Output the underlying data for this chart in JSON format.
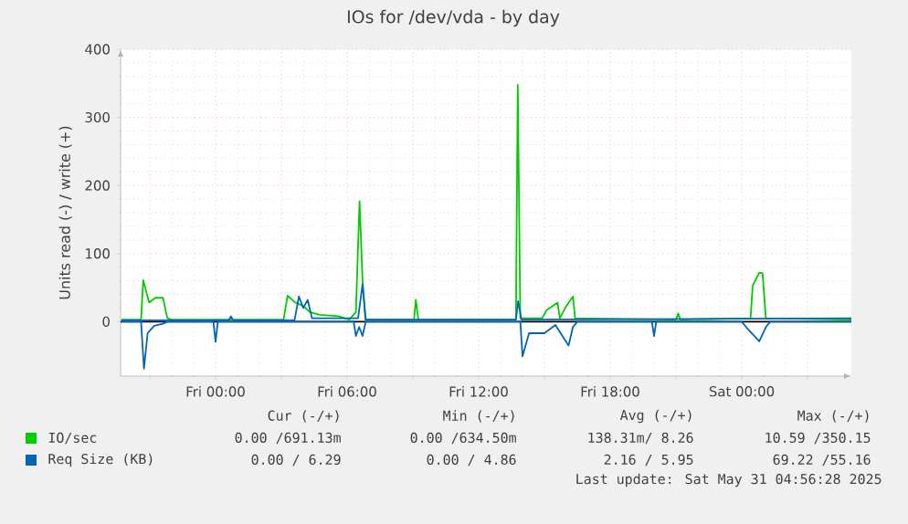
{
  "chart_data": {
    "type": "line",
    "title": "IOs for /dev/vda - by day",
    "ylabel": "Units read (-) / write (+)",
    "xlim": [
      "2025-05-29T19:40",
      "2025-05-31T05:00"
    ],
    "ylim": [
      -80,
      400
    ],
    "xticks": [
      {
        "value": "2025-05-29T21:00",
        "label": null
      },
      {
        "value": "2025-05-30T00:00",
        "label": "Fri 00:00"
      },
      {
        "value": "2025-05-30T03:00",
        "label": null
      },
      {
        "value": "2025-05-30T06:00",
        "label": "Fri 06:00"
      },
      {
        "value": "2025-05-30T09:00",
        "label": null
      },
      {
        "value": "2025-05-30T12:00",
        "label": "Fri 12:00"
      },
      {
        "value": "2025-05-30T15:00",
        "label": null
      },
      {
        "value": "2025-05-30T18:00",
        "label": "Fri 18:00"
      },
      {
        "value": "2025-05-30T21:00",
        "label": null
      },
      {
        "value": "2025-05-31T00:00",
        "label": "Sat 00:00"
      },
      {
        "value": "2025-05-31T03:00",
        "label": null
      }
    ],
    "yticks": [
      0,
      100,
      200,
      300,
      400
    ],
    "grid": true,
    "legend": "bottom",
    "ref_lines": [
      {
        "axis": "y",
        "value": 0,
        "color": "#000000"
      }
    ],
    "series": [
      {
        "name": "IO/sec",
        "color": "#00cc00",
        "x": [
          "2025-05-29T19:42",
          "2025-05-29T20:36",
          "2025-05-29T20:42",
          "2025-05-29T20:58",
          "2025-05-29T21:15",
          "2025-05-29T21:36",
          "2025-05-29T21:48",
          "2025-05-29T22:00",
          "2025-05-30T03:06",
          "2025-05-30T03:17",
          "2025-05-30T03:38",
          "2025-05-30T04:00",
          "2025-05-30T04:18",
          "2025-05-30T04:45",
          "2025-05-30T05:36",
          "2025-05-30T06:06",
          "2025-05-30T06:24",
          "2025-05-30T06:34",
          "2025-05-30T06:42",
          "2025-05-30T06:50",
          "2025-05-30T09:03",
          "2025-05-30T09:08",
          "2025-05-30T09:15",
          "2025-05-30T13:42",
          "2025-05-30T13:47",
          "2025-05-30T13:54",
          "2025-05-30T14:54",
          "2025-05-30T15:06",
          "2025-05-30T15:36",
          "2025-05-30T15:42",
          "2025-05-30T16:00",
          "2025-05-30T16:18",
          "2025-05-30T16:24",
          "2025-05-30T21:00",
          "2025-05-30T21:06",
          "2025-05-30T21:12",
          "2025-05-31T00:24",
          "2025-05-31T00:30",
          "2025-05-31T00:48",
          "2025-05-31T00:57",
          "2025-05-31T01:06",
          "2025-05-31T05:00"
        ],
        "values": [
          3,
          3,
          61,
          28,
          35,
          35,
          5,
          3,
          3,
          38,
          28,
          23,
          14,
          10,
          8,
          3,
          14,
          177,
          63,
          3,
          3,
          32,
          3,
          3,
          348,
          5,
          5,
          17,
          28,
          5,
          23,
          37,
          5,
          3,
          12,
          3,
          5,
          53,
          72,
          71,
          5,
          3
        ]
      },
      {
        "color": "#0066b3",
        "x": [
          "2025-05-29T19:42",
          "2025-05-29T20:36",
          "2025-05-29T20:44",
          "2025-05-29T20:54",
          "2025-05-29T21:12",
          "2025-05-29T21:36",
          "2025-05-29T21:48",
          "2025-05-29T23:54",
          "2025-05-30T00:00",
          "2025-05-30T00:06",
          "2025-05-30T06:18",
          "2025-05-30T06:24",
          "2025-05-30T06:33",
          "2025-05-30T06:42",
          "2025-05-30T06:51",
          "2025-05-30T13:54",
          "2025-05-30T14:00",
          "2025-05-30T14:18",
          "2025-05-30T15:00",
          "2025-05-30T15:30",
          "2025-05-30T16:06",
          "2025-05-30T16:18",
          "2025-05-30T16:30",
          "2025-05-30T19:54",
          "2025-05-30T20:00",
          "2025-05-30T20:06",
          "2025-05-31T00:00",
          "2025-05-31T00:12",
          "2025-05-31T00:48",
          "2025-05-31T01:06",
          "2025-05-31T01:18",
          "2025-05-31T05:00"
        ],
        "values": [
          0,
          0,
          -69,
          -17,
          -6,
          -3,
          0,
          0,
          -30,
          0,
          0,
          -21,
          -8,
          -21,
          0,
          0,
          -51,
          -17,
          -17,
          -5,
          -35,
          -8,
          0,
          0,
          -21,
          0,
          0,
          -8,
          -29,
          -8,
          0,
          0
        ]
      },
      {
        "name": "Req Size (KB)",
        "color": "#0066b3",
        "x": [
          "2025-05-29T19:42",
          "2025-05-30T00:36",
          "2025-05-30T00:42",
          "2025-05-30T00:48",
          "2025-05-30T03:36",
          "2025-05-30T03:48",
          "2025-05-30T04:00",
          "2025-05-30T04:12",
          "2025-05-30T04:24",
          "2025-05-30T06:30",
          "2025-05-30T06:42",
          "2025-05-30T06:51",
          "2025-05-30T13:42",
          "2025-05-30T13:48",
          "2025-05-30T13:57",
          "2025-05-31T05:00"
        ],
        "values": [
          2,
          2,
          8,
          2,
          2,
          37,
          20,
          32,
          5,
          5,
          55,
          3,
          3,
          30,
          3,
          5
        ]
      }
    ],
    "annotations": [
      "Cur (-/+)",
      "Min (-/+)",
      "Avg (-/+)",
      "Max (-/+)",
      "0.00 /691.13m",
      "0.00 /634.50m",
      "138.31m/ 8.26",
      "10.59 /350.15",
      "0.00 / 6.29",
      "0.00 / 4.86",
      "2.16 / 5.95",
      "69.22 /55.16",
      "Last update: Sat May 31 04:56:28 2025"
    ]
  }
}
